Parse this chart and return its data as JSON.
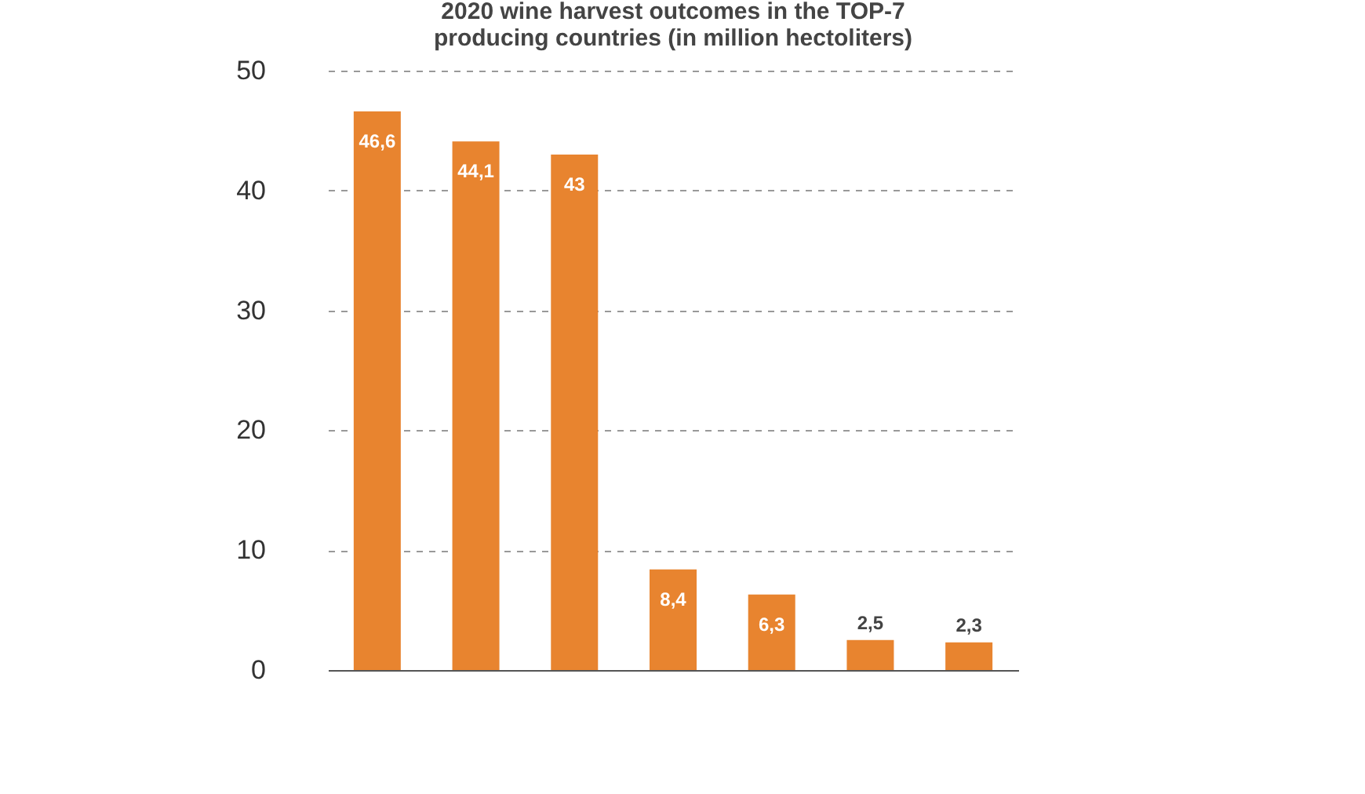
{
  "chart_data": {
    "type": "bar",
    "title": [
      "2020 wine harvest outcomes in the TOP-7",
      "producing countries (in million hectoliters)"
    ],
    "categories": [
      null,
      null,
      null,
      null,
      null,
      null,
      null
    ],
    "values": [
      46.6,
      44.1,
      43,
      8.4,
      6.3,
      2.5,
      2.3
    ],
    "value_labels": [
      "46,6",
      "44,1",
      "43",
      "8,4",
      "6,3",
      "2,5",
      "2,3"
    ],
    "color": "#e8842f",
    "ylim": [
      0,
      50
    ],
    "yticks": [
      0,
      10,
      20,
      30,
      40,
      50
    ],
    "grid": "y"
  }
}
